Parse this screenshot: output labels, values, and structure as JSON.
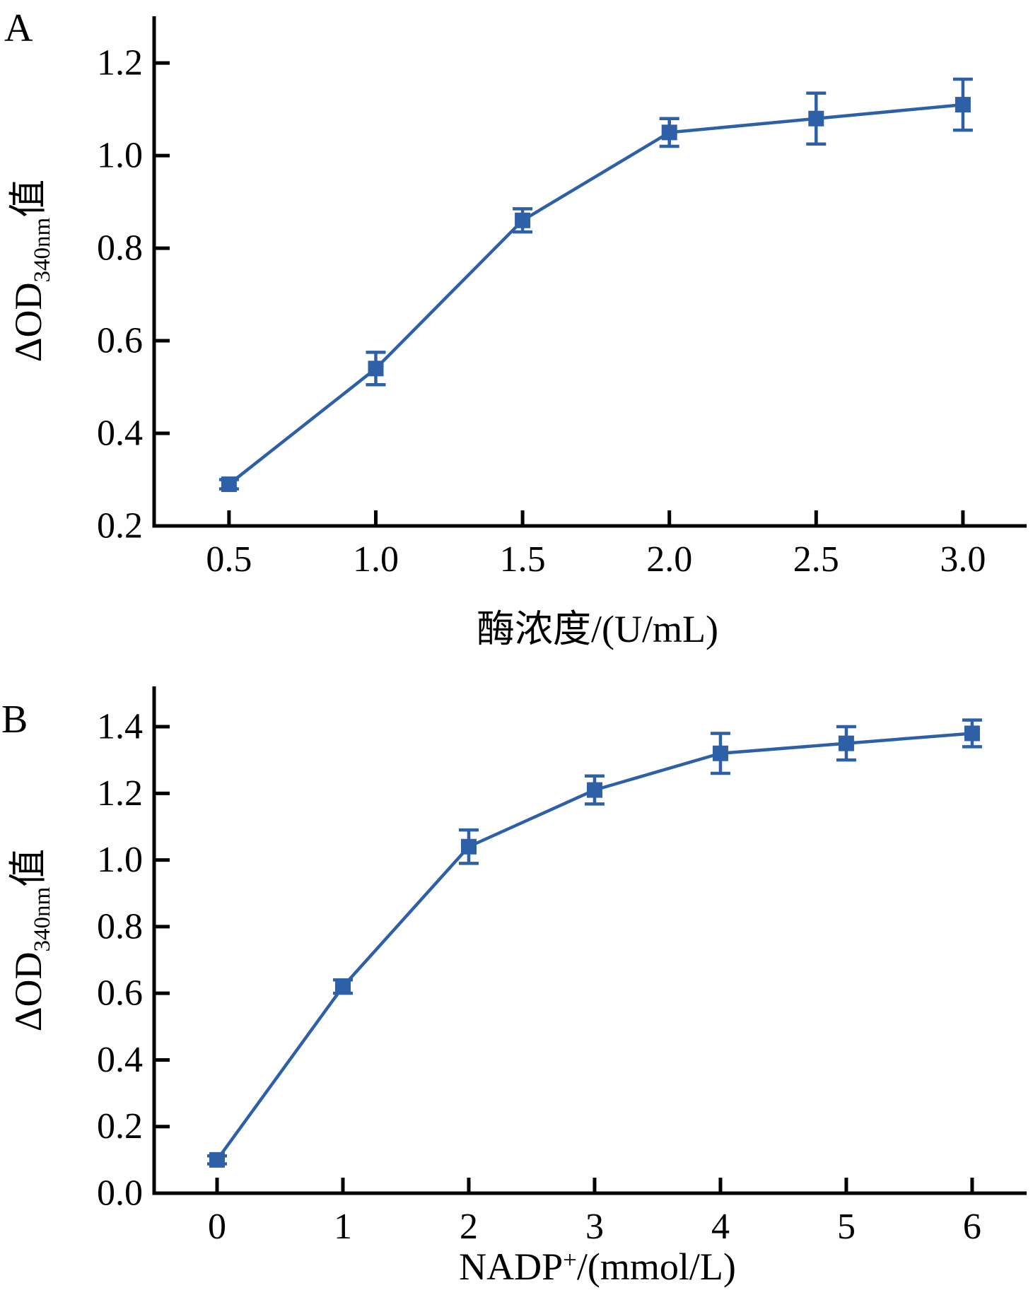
{
  "figure": {
    "background": "#ffffff",
    "axis_color": "#000000",
    "series_color": "#2e60a8",
    "marker_shape": "square"
  },
  "chart_data": [
    {
      "id": "A",
      "panel_label": "A",
      "type": "line",
      "grid": false,
      "legend": null,
      "x": [
        0.5,
        1.0,
        1.5,
        2.0,
        2.5,
        3.0
      ],
      "y": [
        0.29,
        0.54,
        0.86,
        1.05,
        1.08,
        1.11
      ],
      "yerr": [
        0.01,
        0.035,
        0.025,
        0.03,
        0.055,
        0.055
      ],
      "xticks": [
        0.5,
        1.0,
        1.5,
        2.0,
        2.5,
        3.0
      ],
      "xtick_labels": [
        "0.5",
        "1.0",
        "1.5",
        "2.0",
        "2.5",
        "3.0"
      ],
      "yticks": [
        0.2,
        0.4,
        0.6,
        0.8,
        1.0,
        1.2
      ],
      "ytick_labels": [
        "0.2",
        "0.4",
        "0.6",
        "0.8",
        "1.0",
        "1.2"
      ],
      "xlim": [
        0.245,
        3.217
      ],
      "ylim": [
        0.2,
        1.301
      ],
      "xlabel_parts": [
        {
          "t": "酶浓度/(U/mL)"
        }
      ],
      "ylabel_parts": [
        {
          "t": "ΔOD"
        },
        {
          "t": "340nm",
          "sub": true
        },
        {
          "t": "值"
        }
      ]
    },
    {
      "id": "B",
      "panel_label": "B",
      "type": "line",
      "grid": false,
      "legend": null,
      "x": [
        0,
        1,
        2,
        3,
        4,
        5,
        6
      ],
      "y": [
        0.1,
        0.62,
        1.04,
        1.21,
        1.32,
        1.35,
        1.38
      ],
      "yerr": [
        0.012,
        0.02,
        0.05,
        0.042,
        0.06,
        0.05,
        0.04
      ],
      "xticks": [
        0,
        1,
        2,
        3,
        4,
        5,
        6
      ],
      "xtick_labels": [
        "0",
        "1",
        "2",
        "3",
        "4",
        "5",
        "6"
      ],
      "yticks": [
        0.0,
        0.2,
        0.4,
        0.6,
        0.8,
        1.0,
        1.2,
        1.4
      ],
      "ytick_labels": [
        "0.0",
        "0.2",
        "0.4",
        "0.6",
        "0.8",
        "1.0",
        "1.2",
        "1.4"
      ],
      "xlim": [
        -0.5,
        6.433
      ],
      "ylim": [
        0.0,
        1.521
      ],
      "xlabel_parts": [
        {
          "t": "NADP"
        },
        {
          "t": "+",
          "sup": true
        },
        {
          "t": "/(mmol/L)"
        }
      ],
      "ylabel_parts": [
        {
          "t": "ΔOD"
        },
        {
          "t": "340nm",
          "sub": true
        },
        {
          "t": "值"
        }
      ]
    }
  ]
}
